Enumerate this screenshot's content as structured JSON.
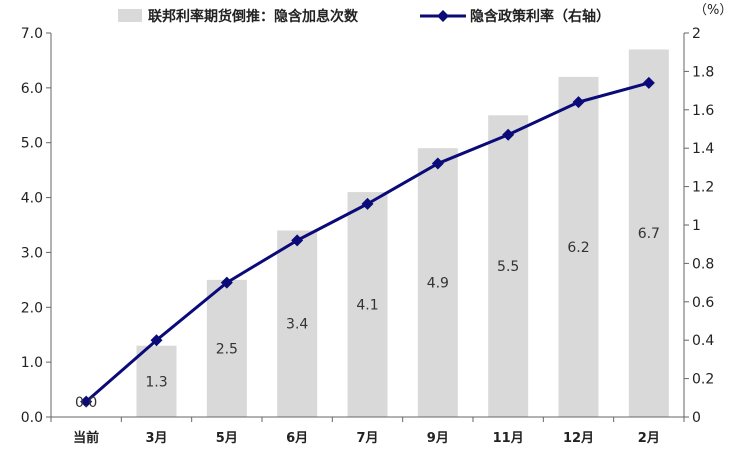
{
  "chart_data": {
    "type": "bar+line",
    "categories": [
      "当前",
      "3月",
      "5月",
      "6月",
      "7月",
      "9月",
      "11月",
      "12月",
      "2月"
    ],
    "series": [
      {
        "name": "联邦利率期货倒推：隐含加息次数",
        "type": "bar",
        "axis": "left",
        "color": "#d9d9d9",
        "values": [
          0.0,
          1.3,
          2.5,
          3.4,
          4.1,
          4.9,
          5.5,
          6.2,
          6.7
        ],
        "labels": [
          "0.0",
          "1.3",
          "2.5",
          "3.4",
          "4.1",
          "4.9",
          "5.5",
          "6.2",
          "6.7"
        ]
      },
      {
        "name": "隐含政策利率（右轴）",
        "type": "line",
        "axis": "right",
        "color": "#0a0a78",
        "marker": "diamond",
        "values": [
          0.08,
          0.4,
          0.7,
          0.92,
          1.11,
          1.32,
          1.47,
          1.64,
          1.74
        ]
      }
    ],
    "left_axis": {
      "min": 0,
      "max": 7,
      "ticks": [
        0,
        1,
        2,
        3,
        4,
        5,
        6,
        7
      ],
      "tick_labels": [
        "0.0",
        "1.0",
        "2.0",
        "3.0",
        "4.0",
        "5.0",
        "6.0",
        "7.0"
      ]
    },
    "right_axis": {
      "min": 0,
      "max": 2,
      "ticks": [
        0,
        0.2,
        0.4,
        0.6,
        0.8,
        1,
        1.2,
        1.4,
        1.6,
        1.8,
        2
      ],
      "tick_labels": [
        "0",
        "0.2",
        "0.4",
        "0.6",
        "0.8",
        "1",
        "1.2",
        "1.4",
        "1.6",
        "1.8",
        "2"
      ],
      "unit": "（%）"
    },
    "legend_position": "top",
    "grid": false
  }
}
